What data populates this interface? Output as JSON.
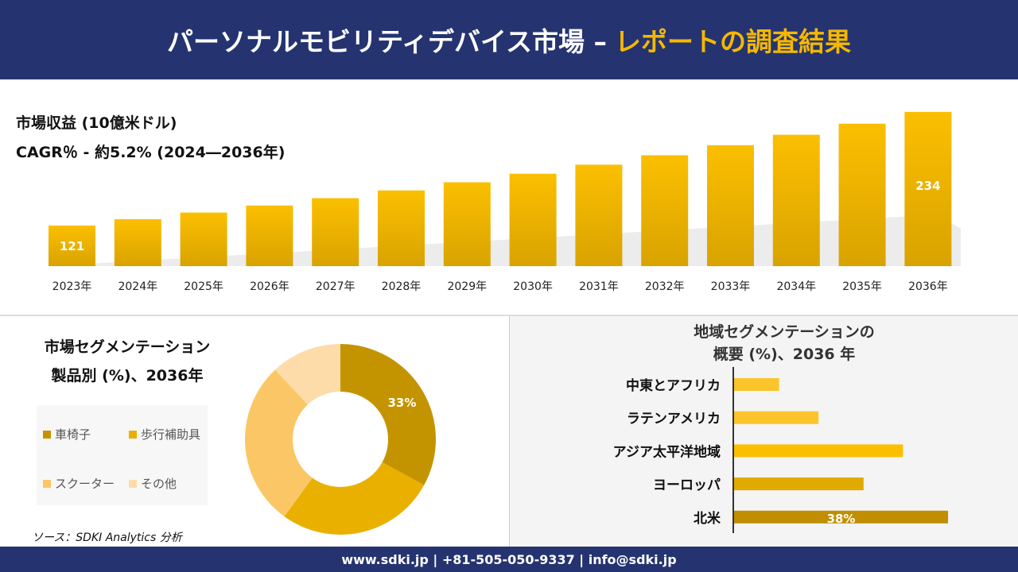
{
  "header": {
    "title_main": "パーソナルモビリティデバイス市場 –",
    "title_accent": "レポートの調査結果"
  },
  "colors": {
    "navy": "#253470",
    "gold": "#f5b800"
  },
  "chart_data": [
    {
      "type": "bar",
      "title": "市場収益 (10億米ドル)",
      "subtitle": "CAGR％ - 約5.2% (2024―2036年)",
      "categories": [
        "2023年",
        "2024年",
        "2025年",
        "2026年",
        "2027年",
        "2028年",
        "2029年",
        "2030年",
        "2031年",
        "2032年",
        "2033年",
        "2034年",
        "2035年",
        "2036年"
      ],
      "values": [
        121,
        127.3,
        133.9,
        140.9,
        148.2,
        155.9,
        164.0,
        172.5,
        181.5,
        190.9,
        200.9,
        211.3,
        222.3,
        234
      ],
      "data_labels": {
        "0": "121",
        "13": "234"
      },
      "grid": false
    },
    {
      "type": "pie",
      "donut": true,
      "title": "市場セグメンテーション 製品別 (%)、2036年",
      "title_line1": "市場セグメンテーション",
      "title_line2": "製品別 (%)、2036年",
      "categories": [
        "車椅子",
        "歩行補助具",
        "スクーター",
        "その他"
      ],
      "values": [
        33,
        27,
        28,
        12
      ],
      "colors": [
        "#c49400",
        "#eab000",
        "#fbc766",
        "#fddcaa"
      ],
      "data_labels": {
        "0": "33%"
      },
      "legend": "left"
    },
    {
      "type": "bar",
      "orientation": "horizontal",
      "title_line1": "地域セグメンテーションの",
      "title_line2": "概要 (%)、2036 年",
      "categories": [
        "中東とアフリカ",
        "ラテンアメリカ",
        "アジア太平洋地域",
        "ヨーロッパ",
        "北米"
      ],
      "values": [
        8,
        15,
        30,
        23,
        38
      ],
      "colors": [
        "#fbc42a",
        "#fbc42a",
        "#fbbf00",
        "#e0aa00",
        "#c08e00"
      ],
      "data_labels": {
        "4": "38%"
      }
    }
  ],
  "source": "ソース：SDKI Analytics 分析",
  "footer": "www.sdki.jp | +81-505-050-9337 | info@sdki.jp"
}
